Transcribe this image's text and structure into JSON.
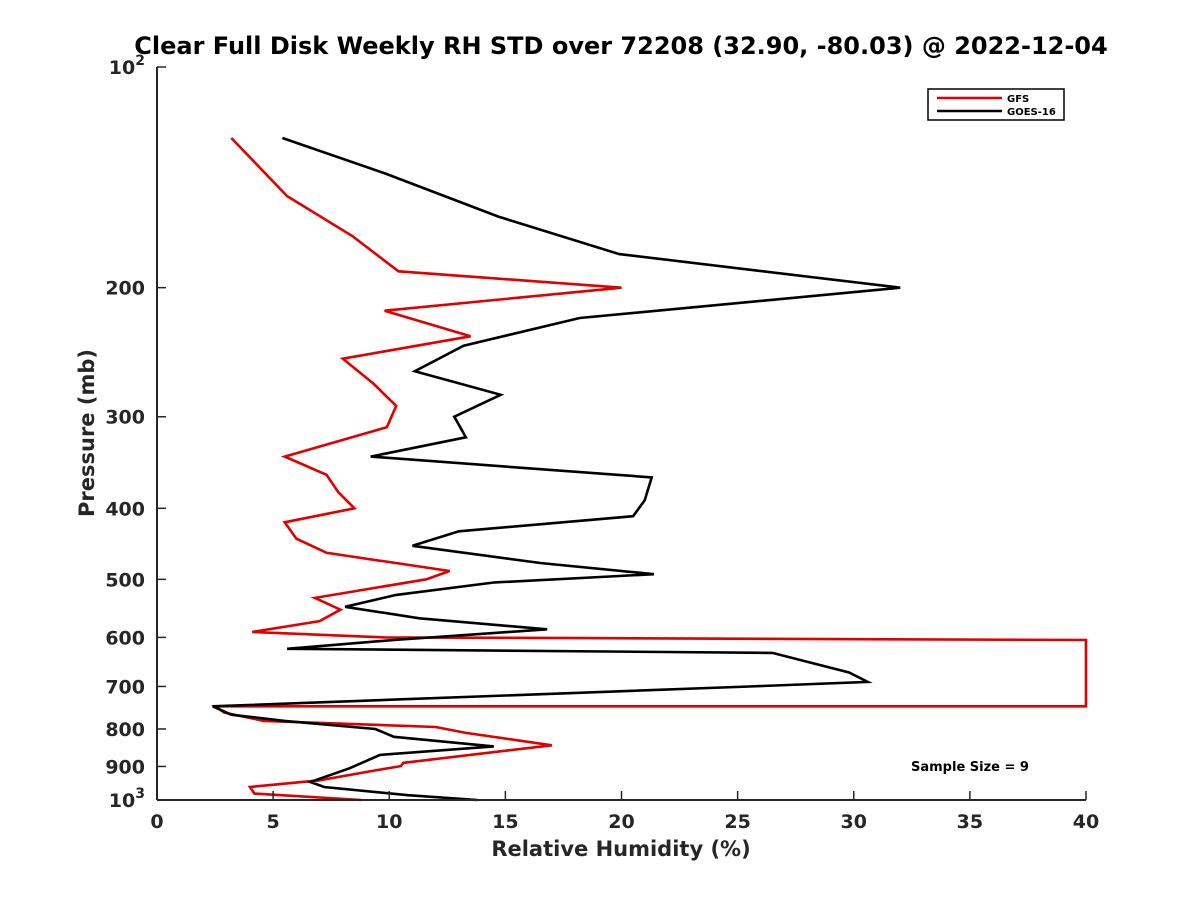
{
  "chart_data": {
    "type": "line",
    "title": "Clear Full Disk Weekly RH STD over 72208 (32.90, -80.03) @ 2022-12-04",
    "xlabel": "Relative Humidity (%)",
    "ylabel": "Pressure (mb)",
    "xlim": [
      0,
      40
    ],
    "ylim": [
      100,
      1000
    ],
    "y_scale": "log",
    "y_reversed": true,
    "grid": false,
    "legend_position": "top-right",
    "x_ticks": [
      0,
      5,
      10,
      15,
      20,
      25,
      30,
      35,
      40
    ],
    "x_tick_labels": [
      "0",
      "5",
      "10",
      "15",
      "20",
      "25",
      "30",
      "35",
      "40"
    ],
    "y_ticks": [
      100,
      200,
      300,
      400,
      500,
      600,
      700,
      800,
      900,
      1000
    ],
    "y_tick_labels": [
      {
        "base": "10",
        "exp": "2"
      },
      {
        "base": "200",
        "exp": ""
      },
      {
        "base": "300",
        "exp": ""
      },
      {
        "base": "400",
        "exp": ""
      },
      {
        "base": "500",
        "exp": ""
      },
      {
        "base": "600",
        "exp": ""
      },
      {
        "base": "700",
        "exp": ""
      },
      {
        "base": "800",
        "exp": ""
      },
      {
        "base": "900",
        "exp": ""
      },
      {
        "base": "10",
        "exp": "3"
      }
    ],
    "annotation": "Sample Size = 9",
    "series": [
      {
        "name": "GFS",
        "color": "#e00000",
        "points": [
          [
            3.2,
            125
          ],
          [
            5.6,
            150
          ],
          [
            8.4,
            170
          ],
          [
            10.4,
            190
          ],
          [
            20.0,
            200
          ],
          [
            9.8,
            215
          ],
          [
            13.5,
            233
          ],
          [
            8.0,
            250
          ],
          [
            9.3,
            270
          ],
          [
            10.3,
            290
          ],
          [
            9.9,
            310
          ],
          [
            5.5,
            340
          ],
          [
            7.3,
            360
          ],
          [
            7.8,
            380
          ],
          [
            8.5,
            400
          ],
          [
            5.5,
            418
          ],
          [
            6.0,
            440
          ],
          [
            7.3,
            460
          ],
          [
            12.6,
            487
          ],
          [
            11.6,
            500
          ],
          [
            6.8,
            530
          ],
          [
            7.9,
            550
          ],
          [
            7.0,
            570
          ],
          [
            4.1,
            590
          ],
          [
            9.8,
            600
          ],
          [
            40,
            605
          ],
          [
            40,
            745
          ],
          [
            2.5,
            745
          ],
          [
            2.9,
            760
          ],
          [
            4.6,
            780
          ],
          [
            12.0,
            795
          ],
          [
            13.3,
            810
          ],
          [
            17.0,
            842
          ],
          [
            10.6,
            890
          ],
          [
            10.5,
            899
          ],
          [
            9.5,
            910
          ],
          [
            7.0,
            940
          ],
          [
            4.0,
            960
          ],
          [
            4.2,
            980
          ],
          [
            8.8,
            1000
          ]
        ]
      },
      {
        "name": "GOES-16",
        "color": "#000000",
        "points": [
          [
            5.4,
            125
          ],
          [
            9.9,
            140
          ],
          [
            14.7,
            160
          ],
          [
            19.9,
            180
          ],
          [
            32.0,
            200
          ],
          [
            18.2,
            220
          ],
          [
            13.2,
            240
          ],
          [
            11.1,
            260
          ],
          [
            14.8,
            280
          ],
          [
            12.8,
            300
          ],
          [
            13.3,
            320
          ],
          [
            9.2,
            340
          ],
          [
            21.3,
            363
          ],
          [
            21.0,
            390
          ],
          [
            20.5,
            410
          ],
          [
            13.0,
            430
          ],
          [
            11.0,
            450
          ],
          [
            16.5,
            475
          ],
          [
            21.4,
            492
          ],
          [
            14.5,
            505
          ],
          [
            10.3,
            525
          ],
          [
            8.1,
            545
          ],
          [
            11.3,
            565
          ],
          [
            16.8,
            585
          ],
          [
            10.2,
            605
          ],
          [
            5.6,
            622
          ],
          [
            26.5,
            630
          ],
          [
            29.8,
            670
          ],
          [
            30.6,
            690
          ],
          [
            25.5,
            700
          ],
          [
            2.4,
            745
          ],
          [
            3.2,
            765
          ],
          [
            5.5,
            780
          ],
          [
            9.4,
            800
          ],
          [
            10.2,
            820
          ],
          [
            14.5,
            845
          ],
          [
            9.6,
            868
          ],
          [
            8.3,
            905
          ],
          [
            6.6,
            945
          ],
          [
            7.2,
            960
          ],
          [
            10.8,
            985
          ],
          [
            13.8,
            1000
          ]
        ]
      }
    ]
  }
}
